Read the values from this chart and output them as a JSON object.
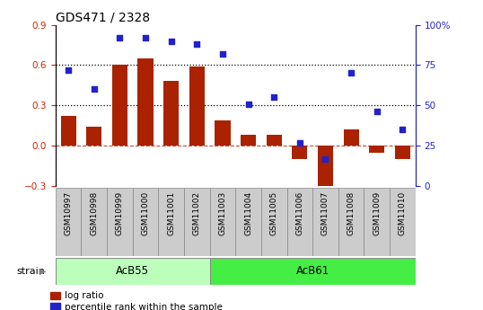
{
  "title": "GDS471 / 2328",
  "categories": [
    "GSM10997",
    "GSM10998",
    "GSM10999",
    "GSM11000",
    "GSM11001",
    "GSM11002",
    "GSM11003",
    "GSM11004",
    "GSM11005",
    "GSM11006",
    "GSM11007",
    "GSM11008",
    "GSM11009",
    "GSM11010"
  ],
  "log_ratio": [
    0.22,
    0.14,
    0.6,
    0.65,
    0.48,
    0.59,
    0.19,
    0.08,
    0.08,
    -0.1,
    -0.38,
    0.12,
    -0.05,
    -0.1
  ],
  "percentile": [
    72,
    60,
    92,
    92,
    90,
    88,
    82,
    51,
    55,
    27,
    17,
    70,
    46,
    35
  ],
  "bar_color": "#aa2200",
  "dot_color": "#2222cc",
  "group1_label": "AcB55",
  "group1_indices": [
    0,
    5
  ],
  "group2_label": "AcB61",
  "group2_indices": [
    6,
    13
  ],
  "strain_label": "strain",
  "legend_bar": "log ratio",
  "legend_dot": "percentile rank within the sample",
  "ylim_left": [
    -0.3,
    0.9
  ],
  "ylim_right": [
    0,
    100
  ],
  "yticks_left": [
    -0.3,
    0.0,
    0.3,
    0.6,
    0.9
  ],
  "yticks_right": [
    0,
    25,
    50,
    75,
    100
  ],
  "hline_dotted": [
    0.3,
    0.6
  ],
  "hline_dashed": 0.0,
  "group1_color": "#bbffbb",
  "group2_color": "#44ee44",
  "axis_color_left": "#cc2200",
  "axis_color_right": "#2222cc",
  "cell_color": "#cccccc",
  "cell_border": "#888888"
}
